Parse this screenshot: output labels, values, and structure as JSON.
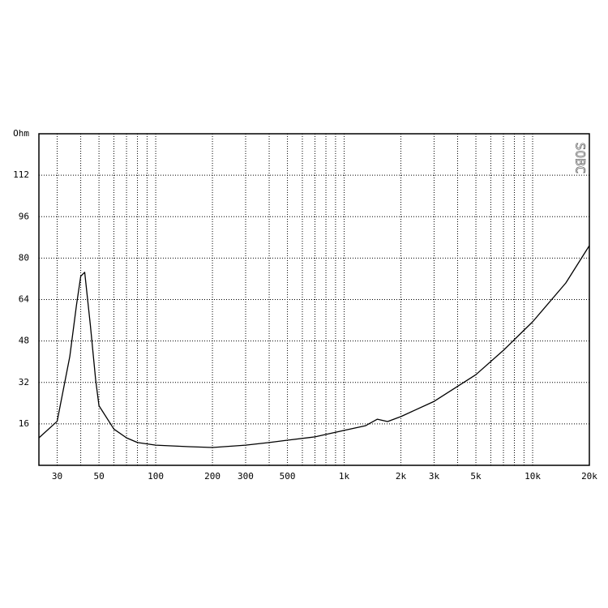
{
  "chart_data": {
    "type": "line",
    "log_x": true,
    "grid": true,
    "color": "#000000",
    "watermark": "SOBC",
    "xlim": [
      24,
      20000
    ],
    "ylim": [
      0,
      128
    ],
    "xticks": [
      30,
      50,
      100,
      200,
      300,
      500,
      {
        "value": 1000,
        "label": "1k"
      },
      {
        "value": 2000,
        "label": "2k"
      },
      {
        "value": 3000,
        "label": "3k"
      },
      {
        "value": 5000,
        "label": "5k"
      },
      {
        "value": 10000,
        "label": "10k"
      },
      {
        "value": 20000,
        "label": "20k"
      }
    ],
    "minor_xticks": [
      40,
      60,
      70,
      80,
      90,
      400,
      600,
      700,
      800,
      900,
      4000,
      6000,
      7000,
      8000,
      9000
    ],
    "yticks": [
      16,
      32,
      48,
      64,
      80,
      96,
      112,
      {
        "value": 128,
        "label": "Ohm"
      }
    ],
    "x": [
      24,
      30,
      35,
      38,
      40,
      42,
      45,
      48,
      50,
      60,
      70,
      80,
      100,
      150,
      200,
      300,
      400,
      500,
      700,
      1000,
      1300,
      1500,
      1700,
      2000,
      3000,
      5000,
      7000,
      10000,
      15000,
      20000
    ],
    "values": [
      10.6,
      17,
      42,
      62,
      73,
      74.5,
      54,
      33,
      23,
      14,
      10.6,
      8.8,
      7.8,
      7.2,
      6.9,
      7.8,
      8.8,
      9.7,
      11,
      13.5,
      15.3,
      17.8,
      16.9,
      18.8,
      24.7,
      35,
      44.4,
      55.4,
      70.4,
      84.8
    ]
  }
}
